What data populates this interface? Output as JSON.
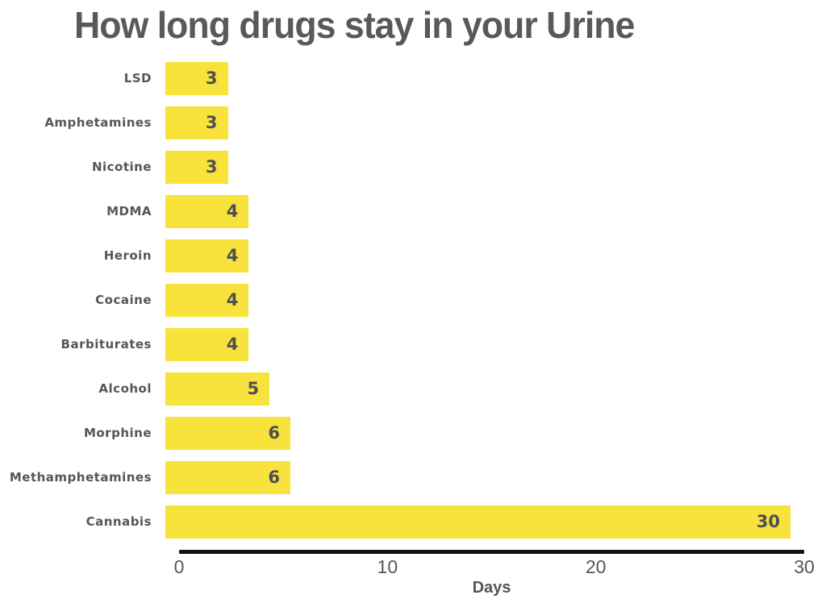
{
  "title": "How long drugs stay in your Urine",
  "chart_data": {
    "type": "bar",
    "orientation": "horizontal",
    "title": "How long drugs stay in your Urine",
    "categories": [
      "LSD",
      "Amphetamines",
      "Nicotine",
      "MDMA",
      "Heroin",
      "Cocaine",
      "Barbiturates",
      "Alcohol",
      "Morphine",
      "Methamphetamines",
      "Cannabis"
    ],
    "values": [
      3,
      3,
      3,
      4,
      4,
      4,
      4,
      5,
      6,
      6,
      30
    ],
    "xlabel": "Days",
    "ylabel": "",
    "xlim": [
      0,
      30
    ],
    "xticks": [
      0,
      10,
      20,
      30
    ],
    "grid": false,
    "legend": "none",
    "bar_color": "#F8E23C",
    "value_label_color": "#4E4F51",
    "text_color": "#58595B",
    "axis_color": "#121212"
  }
}
